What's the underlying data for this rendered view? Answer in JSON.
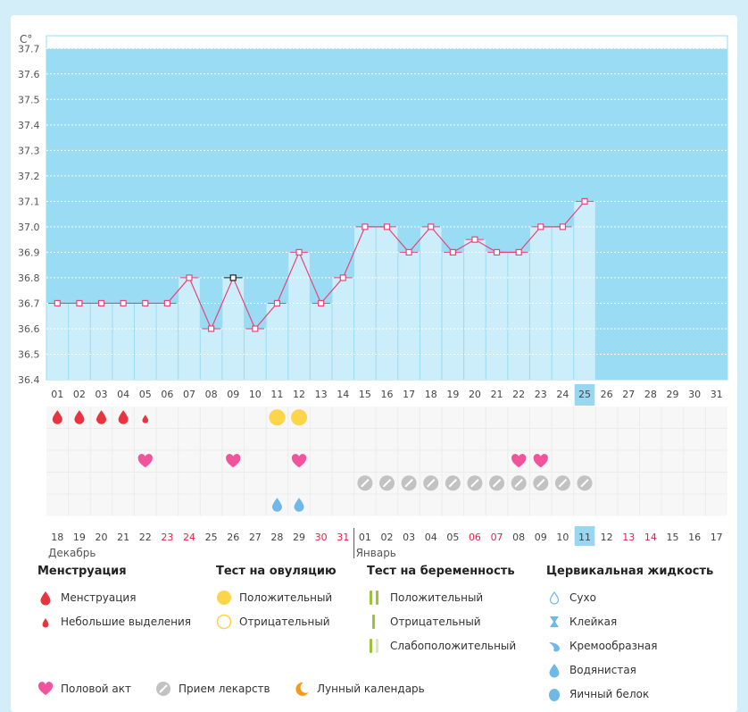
{
  "chart_data": {
    "type": "line",
    "y_unit_label": "C°",
    "ylim": [
      36.4,
      37.75
    ],
    "y_ticks": [
      "37.7",
      "37.6",
      "37.5",
      "37.4",
      "37.3",
      "37.2",
      "37.1",
      "37.0",
      "36.9",
      "36.8",
      "36.7",
      "36.6",
      "36.5",
      "36.4"
    ],
    "cycle_days": [
      "01",
      "02",
      "03",
      "04",
      "05",
      "06",
      "07",
      "08",
      "09",
      "10",
      "11",
      "12",
      "13",
      "14",
      "15",
      "16",
      "17",
      "18",
      "19",
      "20",
      "21",
      "22",
      "23",
      "24",
      "25",
      "26",
      "27",
      "28",
      "29",
      "30",
      "31"
    ],
    "calendar_dates": [
      "18",
      "19",
      "20",
      "21",
      "22",
      "23",
      "24",
      "25",
      "26",
      "27",
      "28",
      "29",
      "30",
      "31",
      "01",
      "02",
      "03",
      "04",
      "05",
      "06",
      "07",
      "08",
      "09",
      "10",
      "11",
      "12",
      "13",
      "14",
      "15",
      "16",
      "17"
    ],
    "weekend_date_indices": [
      5,
      6,
      12,
      13,
      19,
      20,
      26,
      27
    ],
    "current_day_index": 24,
    "month_labels": [
      {
        "label": "Декабрь",
        "start_index": 0
      },
      {
        "label": "Январь",
        "start_index": 14
      }
    ],
    "temperatures": [
      36.7,
      36.7,
      36.7,
      36.7,
      36.7,
      36.7,
      36.8,
      36.6,
      36.8,
      36.6,
      36.7,
      36.9,
      36.7,
      36.8,
      37.0,
      37.0,
      36.9,
      37.0,
      36.9,
      36.95,
      36.9,
      36.9,
      37.0,
      37.0,
      37.1
    ],
    "highlight_marker_index": 8,
    "cover_line": 37.7,
    "menstruation_big_indices": [
      0,
      1,
      2,
      3
    ],
    "menstruation_small_indices": [
      4
    ],
    "ovulation_positive_indices": [
      10,
      11
    ],
    "intercourse_indices": [
      4,
      8,
      11,
      21,
      22
    ],
    "medication_indices": [
      14,
      15,
      16,
      17,
      18,
      19,
      20,
      21,
      22,
      23,
      24
    ],
    "cervical_watery_indices": [
      10,
      11
    ]
  },
  "legend": {
    "menstruation": {
      "title": "Менструация",
      "items": [
        "Менструация",
        "Небольшие выделения"
      ]
    },
    "ovulation_test": {
      "title": "Тест на овуляцию",
      "items": [
        "Положительный",
        "Отрицательный"
      ]
    },
    "pregnancy_test": {
      "title": "Тест на беременность",
      "items": [
        "Положительный",
        "Отрицательный",
        "Слабоположительный"
      ]
    },
    "cervical_fluid": {
      "title": "Цервикальная жидкость",
      "items": [
        "Сухо",
        "Клейкая",
        "Кремообразная",
        "Водянистая",
        "Яичный белок"
      ]
    },
    "bottom": [
      "Половой акт",
      "Прием лекарств",
      "Лунный календарь"
    ]
  },
  "colors": {
    "area_blue": "#99dcf4",
    "bar_light": "#ccedfa",
    "line_pink": "#e8457a",
    "menses_red": "#e8343f",
    "ovulation_yellow": "#fcd54a",
    "heart_pink": "#f1539d",
    "drop_blue": "#6fb8e8",
    "pill_gray": "#c2c2c2",
    "weekend_red": "#e0234a",
    "today_bg": "#99d6ef",
    "test_green": "#9cc23a",
    "moon_orange": "#f29a1e"
  }
}
